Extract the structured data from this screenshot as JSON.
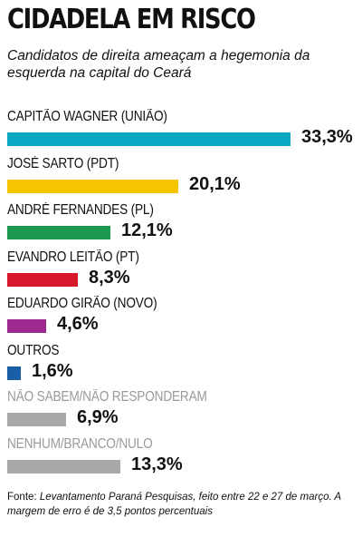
{
  "header": {
    "title": "CIDADELA EM RISCO",
    "subtitle": "Candidatos de direita ameaçam a hegemonia da esquerda na capital do Ceará"
  },
  "source": {
    "lead": "Fonte:",
    "text": "Levantamento Paraná Pesquisas, feito entre 22 e 27 de março. A margem de erro é de 3,5 pontos percentuais"
  },
  "chart_data": {
    "type": "bar",
    "orientation": "horizontal",
    "unit": "%",
    "xlim": [
      0,
      33.3
    ],
    "categories": [
      "CAPITÃO WAGNER (UNIÃO)",
      "JOSÉ SARTO (PDT)",
      "ANDRÉ FERNANDES (PL)",
      "EVANDRO LEITÃO (PT)",
      "EDUARDO GIRÃO (NOVO)",
      "OUTROS",
      "NÃO SABEM/NÃO RESPONDERAM",
      "NENHUM/BRANCO/NULO"
    ],
    "values": [
      33.3,
      20.1,
      12.1,
      8.3,
      4.6,
      1.6,
      6.9,
      13.3
    ],
    "value_labels": [
      "33,3%",
      "20,1%",
      "12,1%",
      "8,3%",
      "4,6%",
      "1,6%",
      "6,9%",
      "13,3%"
    ],
    "colors": [
      "#0aa6c2",
      "#f6c400",
      "#1b9a4f",
      "#d7182a",
      "#9c2a8e",
      "#1b5ea8",
      "#a9a9a9",
      "#a9a9a9"
    ],
    "label_colors": [
      "#111111",
      "#111111",
      "#111111",
      "#111111",
      "#111111",
      "#111111",
      "#9a9a9a",
      "#9a9a9a"
    ],
    "grid": false,
    "legend": "none"
  }
}
